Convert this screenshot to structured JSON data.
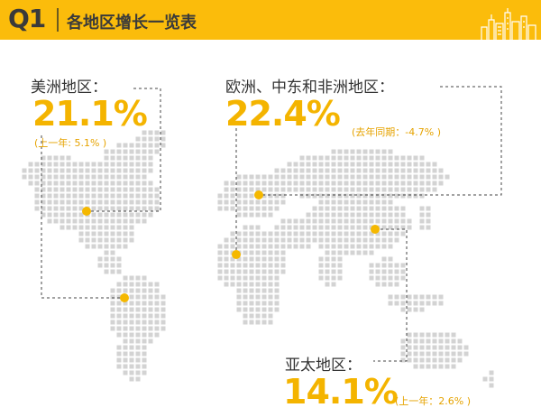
{
  "header": {
    "q_label": "Q1",
    "title": "各地区增长一览表"
  },
  "regions": {
    "americas": {
      "name": "美洲地区：",
      "value": "21.1%",
      "note": "(上一年: 5.1% )"
    },
    "emea": {
      "name": "欧洲、中东和非洲地区：",
      "value": "22.4%",
      "note": "(去年同期：-4.7% )"
    },
    "apac": {
      "name": "亚太地区：",
      "value": "14.1%",
      "note": "(上一年：2.6% )"
    }
  },
  "colors": {
    "accent": "#fbbc0b",
    "value_text": "#f4b400",
    "map_dots": "#d3d3d3",
    "marker": "#f5b800"
  }
}
